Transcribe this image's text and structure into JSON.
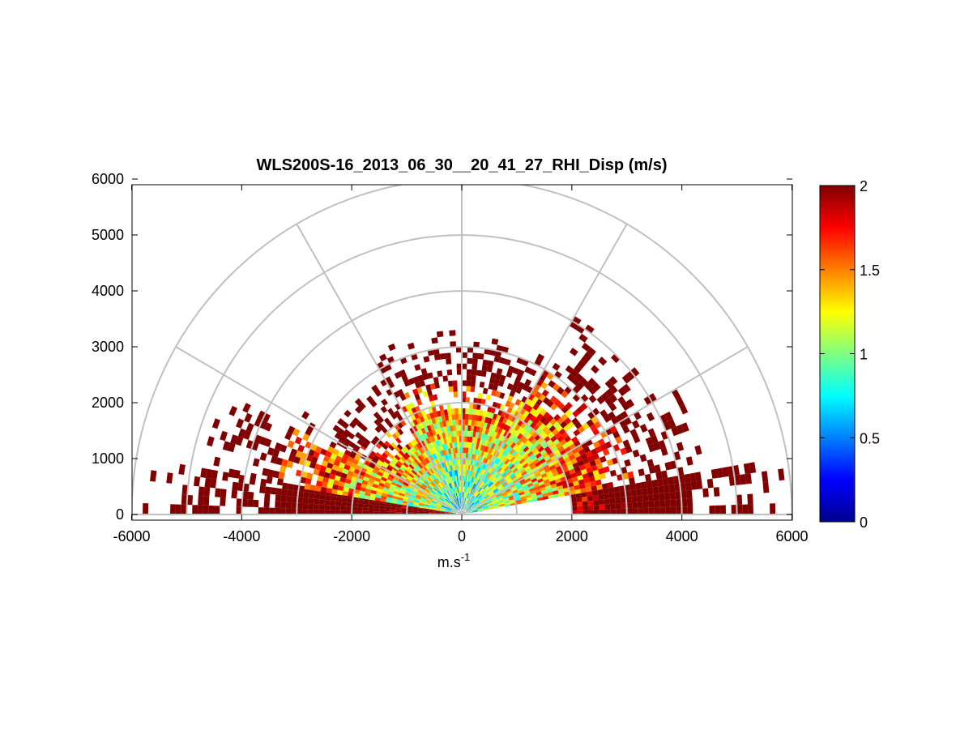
{
  "chart_data": {
    "type": "heatmap",
    "subtype": "polar-rhi",
    "title": "WLS200S-16_2013_06_30__20_41_27_RHI_Disp (m/s)",
    "xlabel_base": "m.s",
    "xlabel_sup": "-1",
    "xlim": [
      -6000,
      6000
    ],
    "ylim": [
      0,
      6000
    ],
    "x_ticks": [
      -6000,
      -4000,
      -2000,
      0,
      2000,
      4000,
      6000
    ],
    "y_ticks": [
      0,
      1000,
      2000,
      3000,
      4000,
      5000,
      6000
    ],
    "x_tick_labels": [
      "-6000",
      "-4000",
      "-2000",
      "0",
      "2000",
      "4000",
      "6000"
    ],
    "y_tick_labels": [
      "0",
      "1000",
      "2000",
      "3000",
      "4000",
      "5000",
      "6000"
    ],
    "polar_rings": [
      1000,
      2000,
      3000,
      4000,
      5000,
      6000
    ],
    "polar_spokes_deg": [
      0,
      30,
      60,
      90,
      120,
      150,
      180
    ],
    "colorbar": {
      "min": 0,
      "max": 2,
      "ticks": [
        0,
        0.5,
        1,
        1.5,
        2
      ],
      "tick_labels": [
        "0",
        "0.5",
        "1",
        "1.5",
        "2"
      ],
      "colormap": "jet"
    },
    "field": {
      "range_gate_m": 100,
      "sectors": [
        {
          "az_from": 170,
          "az_to": 180,
          "r_from": 100,
          "r_to": 5800,
          "value": 2.0
        },
        {
          "az_from": 153,
          "az_to": 170,
          "r_from": 100,
          "r_to": 4800,
          "value": 0.9
        },
        {
          "az_from": 145,
          "az_to": 153,
          "r_from": 100,
          "r_to": 3400,
          "value": 1.0
        },
        {
          "az_from": 120,
          "az_to": 145,
          "r_from": 100,
          "r_to": 2800,
          "value": 0.8
        },
        {
          "az_from": 90,
          "az_to": 120,
          "r_from": 100,
          "r_to": 3300,
          "value": 0.7
        },
        {
          "az_from": 60,
          "az_to": 90,
          "r_from": 100,
          "r_to": 3200,
          "value": 0.75
        },
        {
          "az_from": 30,
          "az_to": 60,
          "r_from": 100,
          "r_to": 4100,
          "value": 0.8
        },
        {
          "az_from": 10,
          "az_to": 30,
          "r_from": 100,
          "r_to": 4500,
          "value": 0.9
        },
        {
          "az_from": 0,
          "az_to": 10,
          "r_from": 2000,
          "r_to": 5900,
          "value": 2.0
        }
      ]
    }
  },
  "colors": {
    "ring_grid": "#c0c0c0",
    "axis": "#000000",
    "background": "#ffffff"
  }
}
